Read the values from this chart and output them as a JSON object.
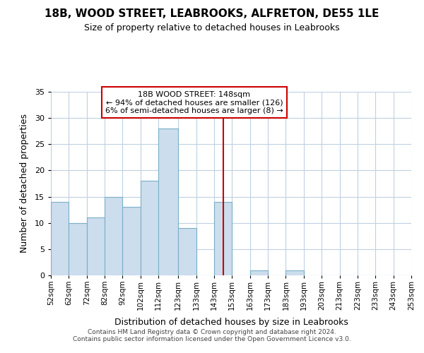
{
  "title": "18B, WOOD STREET, LEABROOKS, ALFRETON, DE55 1LE",
  "subtitle": "Size of property relative to detached houses in Leabrooks",
  "xlabel": "Distribution of detached houses by size in Leabrooks",
  "ylabel": "Number of detached properties",
  "bin_edges": [
    52,
    62,
    72,
    82,
    92,
    102,
    112,
    123,
    133,
    143,
    153,
    163,
    173,
    183,
    193,
    203,
    213,
    223,
    233,
    243,
    253
  ],
  "bar_heights": [
    14,
    10,
    11,
    15,
    13,
    18,
    28,
    9,
    0,
    14,
    0,
    1,
    0,
    1,
    0,
    0,
    0,
    0,
    0,
    0
  ],
  "bar_color": "#ccdded",
  "bar_edgecolor": "#7aafc8",
  "vline_x": 148,
  "vline_color": "#cc0000",
  "ylim": [
    0,
    35
  ],
  "yticks": [
    0,
    5,
    10,
    15,
    20,
    25,
    30,
    35
  ],
  "annotation_title": "18B WOOD STREET: 148sqm",
  "annotation_line1": "← 94% of detached houses are smaller (126)",
  "annotation_line2": "6% of semi-detached houses are larger (8) →",
  "annotation_box_color": "#ffffff",
  "annotation_box_edgecolor": "#cc0000",
  "tick_labels": [
    "52sqm",
    "62sqm",
    "72sqm",
    "82sqm",
    "92sqm",
    "102sqm",
    "112sqm",
    "123sqm",
    "133sqm",
    "143sqm",
    "153sqm",
    "163sqm",
    "173sqm",
    "183sqm",
    "193sqm",
    "203sqm",
    "213sqm",
    "223sqm",
    "233sqm",
    "243sqm",
    "253sqm"
  ],
  "footer_line1": "Contains HM Land Registry data © Crown copyright and database right 2024.",
  "footer_line2": "Contains public sector information licensed under the Open Government Licence v3.0.",
  "background_color": "#ffffff",
  "grid_color": "#c0d0e0",
  "figsize": [
    6.0,
    5.0
  ],
  "dpi": 100
}
